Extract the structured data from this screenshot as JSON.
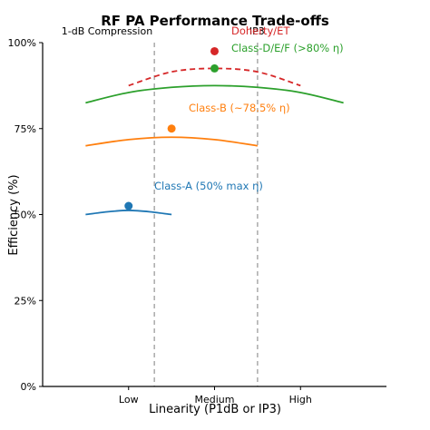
{
  "chart_data": {
    "type": "line",
    "title": "RF PA Performance Trade-offs",
    "xlabel": "Linearity (P1dB or IP3)",
    "ylabel": "Efficiency (%)",
    "xlim": [
      0,
      4
    ],
    "ylim": [
      0,
      100
    ],
    "x_ticks": [
      {
        "value": 1,
        "label": "Low"
      },
      {
        "value": 2,
        "label": "Medium"
      },
      {
        "value": 3,
        "label": "High"
      }
    ],
    "y_ticks": [
      {
        "value": 0,
        "label": "0%"
      },
      {
        "value": 25,
        "label": "25%"
      },
      {
        "value": 50,
        "label": "50%"
      },
      {
        "value": 75,
        "label": "75%"
      },
      {
        "value": 100,
        "label": "100%"
      }
    ],
    "grid": false,
    "reference_lines": [
      {
        "x": 1.3,
        "label": "1-dB Compression",
        "color": "#aaaaaa",
        "style": "dashed"
      },
      {
        "x": 2.5,
        "label": "IP3",
        "color": "#aaaaaa",
        "style": "dashed"
      }
    ],
    "series": [
      {
        "name": "Class-A (50% max η)",
        "color": "#1f77b4",
        "style": "solid",
        "curve": {
          "x": [
            0.5,
            0.75,
            1.0,
            1.25,
            1.5
          ],
          "y": [
            50.0,
            50.8,
            51.2,
            50.8,
            50.0
          ]
        },
        "point": {
          "x": 1.0,
          "y": 52.5
        }
      },
      {
        "name": "Class-B (~78.5% η)",
        "color": "#ff7f0e",
        "style": "solid",
        "curve": {
          "x": [
            0.5,
            1.0,
            1.5,
            2.0,
            2.5
          ],
          "y": [
            70.0,
            71.8,
            72.5,
            71.8,
            70.0
          ]
        },
        "point": {
          "x": 1.5,
          "y": 75.0
        }
      },
      {
        "name": "Class-D/E/F (>80% η)",
        "color": "#2ca02c",
        "style": "solid",
        "curve": {
          "x": [
            0.5,
            1.0,
            1.5,
            2.0,
            2.5,
            3.0,
            3.5
          ],
          "y": [
            82.5,
            85.5,
            87.0,
            87.5,
            87.0,
            85.5,
            82.5
          ]
        },
        "point": {
          "x": 2.0,
          "y": 92.5
        }
      },
      {
        "name": "Doherty/ET",
        "color": "#d62728",
        "style": "dashed",
        "curve": {
          "x": [
            1.0,
            1.5,
            2.0,
            2.5,
            3.0
          ],
          "y": [
            87.5,
            91.5,
            92.5,
            91.5,
            87.5
          ]
        },
        "point": {
          "x": 2.0,
          "y": 97.5
        }
      }
    ]
  }
}
